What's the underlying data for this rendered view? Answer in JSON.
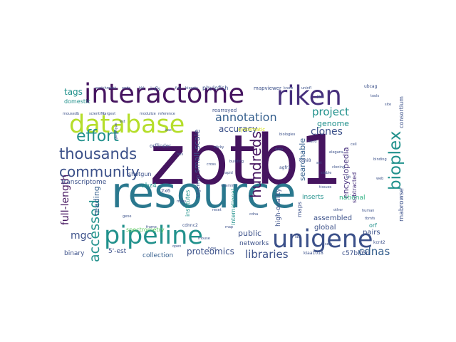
{
  "palette": {
    "dark_purple": "#45145f",
    "purple": "#462f7c",
    "indigo": "#3b5089",
    "blue": "#355f8d",
    "teal_blue": "#2a788e",
    "teal": "#21918c",
    "green": "#2ab07f",
    "light_green": "#5ec962",
    "lime": "#b5de2b",
    "yellow": "#d5e21b"
  },
  "words": [
    {
      "text": "zbtb1",
      "color": "dark_purple"
    },
    {
      "text": "resource",
      "color": "teal_blue"
    },
    {
      "text": "interactome",
      "color": "dark_purple"
    },
    {
      "text": "riken",
      "color": "purple"
    },
    {
      "text": "database",
      "color": "lime"
    },
    {
      "text": "pipeline",
      "color": "teal"
    },
    {
      "text": "unigene",
      "color": "indigo"
    },
    {
      "text": "bioplex",
      "color": "teal"
    },
    {
      "text": "thousands",
      "color": "indigo"
    },
    {
      "text": "community",
      "color": "indigo"
    },
    {
      "text": "effort",
      "color": "teal"
    },
    {
      "text": "hundreds",
      "color": "dark_purple"
    },
    {
      "text": "accessed",
      "color": "teal"
    },
    {
      "text": "annotation",
      "color": "blue"
    },
    {
      "text": "project",
      "color": "teal"
    },
    {
      "text": "libraries",
      "color": "indigo"
    },
    {
      "text": "clones",
      "color": "indigo"
    },
    {
      "text": "cdnas",
      "color": "blue"
    },
    {
      "text": "tags",
      "color": "teal"
    },
    {
      "text": "mgc",
      "color": "indigo"
    },
    {
      "text": "proteomics",
      "color": "indigo"
    },
    {
      "text": "full-length",
      "color": "dark_purple"
    },
    {
      "text": "accuracy",
      "color": "indigo"
    },
    {
      "text": "genome",
      "color": "teal"
    },
    {
      "text": "encyclopedia",
      "color": "purple"
    },
    {
      "text": "small-scale",
      "color": "indigo"
    },
    {
      "text": "searchable",
      "color": "blue"
    },
    {
      "text": "public",
      "color": "indigo"
    },
    {
      "text": "reading",
      "color": "blue"
    },
    {
      "text": "assembled",
      "color": "indigo"
    },
    {
      "text": "global",
      "color": "indigo"
    },
    {
      "text": "pairs",
      "color": "indigo"
    },
    {
      "text": "transcriptome",
      "color": "indigo"
    },
    {
      "text": "collection",
      "color": "blue"
    },
    {
      "text": "binary",
      "color": "indigo"
    },
    {
      "text": "5'-est",
      "color": "indigo"
    },
    {
      "text": "networks",
      "color": "indigo"
    },
    {
      "text": "spectrometry",
      "color": "light_green"
    },
    {
      "text": "institutes",
      "color": "teal"
    },
    {
      "text": "national",
      "color": "green"
    },
    {
      "text": "inserts",
      "color": "teal"
    },
    {
      "text": "high-quality",
      "color": "indigo"
    },
    {
      "text": "international",
      "color": "teal"
    },
    {
      "text": "maps",
      "color": "indigo"
    },
    {
      "text": "subtracted",
      "color": "purple"
    },
    {
      "text": "rnabrowse",
      "color": "indigo"
    },
    {
      "text": "consortium",
      "color": "indigo"
    },
    {
      "text": "domestic",
      "color": "teal"
    },
    {
      "text": "shotgun",
      "color": "indigo"
    },
    {
      "text": "sagemap",
      "color": "indigo"
    },
    {
      "text": "ubz4",
      "color": "teal"
    },
    {
      "text": "orf",
      "color": "teal"
    },
    {
      "text": "c57bl/6n",
      "color": "indigo"
    },
    {
      "text": "systematic",
      "color": "yellow"
    },
    {
      "text": "orffinder",
      "color": "indigo"
    },
    {
      "text": "phylofish",
      "color": "indigo"
    },
    {
      "text": "mapviewer",
      "color": "indigo"
    },
    {
      "text": "rearrayed",
      "color": "indigo"
    },
    {
      "text": "infls",
      "color": "indigo"
    },
    {
      "text": "enrichment",
      "color": "indigo"
    },
    {
      "text": "ends",
      "color": "indigo"
    },
    {
      "text": "hkl",
      "color": "indigo"
    },
    {
      "text": "full",
      "color": "indigo"
    },
    {
      "text": "biosets",
      "color": "indigo"
    },
    {
      "text": "largest",
      "color": "indigo"
    },
    {
      "text": "reference",
      "color": "indigo"
    },
    {
      "text": "modulize",
      "color": "indigo"
    },
    {
      "text": "scientific",
      "color": "indigo"
    },
    {
      "text": "mousedb",
      "color": "indigo"
    },
    {
      "text": "know",
      "color": "indigo"
    },
    {
      "text": "uninfl",
      "color": "indigo"
    },
    {
      "text": "ubcag",
      "color": "indigo"
    },
    {
      "text": "cdhi8",
      "color": "indigo"
    },
    {
      "text": "2x6",
      "color": "indigo"
    },
    {
      "text": "tbmfs",
      "color": "indigo"
    },
    {
      "text": "kcnt2",
      "color": "indigo"
    },
    {
      "text": "kiaa1018",
      "color": "indigo"
    },
    {
      "text": "cdnnc2",
      "color": "indigo"
    },
    {
      "text": "hand",
      "color": "indigo"
    },
    {
      "text": "agfr1",
      "color": "indigo"
    },
    {
      "text": "sticky",
      "color": "indigo"
    },
    {
      "text": "building",
      "color": "indigo"
    },
    {
      "text": "jira",
      "color": "indigo"
    },
    {
      "text": "rapid",
      "color": "indigo"
    },
    {
      "text": "vitamin",
      "color": "indigo"
    },
    {
      "text": "biologies",
      "color": "indigo"
    },
    {
      "text": "elegans",
      "color": "indigo"
    },
    {
      "text": "reset",
      "color": "indigo"
    },
    {
      "text": "genotype",
      "color": "indigo"
    },
    {
      "text": "cell",
      "color": "indigo"
    },
    {
      "text": "hits",
      "color": "indigo"
    },
    {
      "text": "cross",
      "color": "indigo"
    },
    {
      "text": "binding",
      "color": "indigo"
    },
    {
      "text": "stable",
      "color": "indigo"
    },
    {
      "text": "frame",
      "color": "indigo"
    },
    {
      "text": "cloning",
      "color": "indigo"
    },
    {
      "text": "tissues",
      "color": "indigo"
    },
    {
      "text": "mass",
      "color": "indigo"
    },
    {
      "text": "cdna",
      "color": "indigo"
    },
    {
      "text": "human",
      "color": "indigo"
    },
    {
      "text": "mouse",
      "color": "indigo"
    },
    {
      "text": "open",
      "color": "indigo"
    },
    {
      "text": "type",
      "color": "indigo"
    },
    {
      "text": "gene",
      "color": "indigo"
    },
    {
      "text": "data",
      "color": "indigo"
    },
    {
      "text": "other",
      "color": "indigo"
    },
    {
      "text": "sets",
      "color": "indigo"
    },
    {
      "text": "tools",
      "color": "indigo"
    },
    {
      "text": "site",
      "color": "indigo"
    },
    {
      "text": "map",
      "color": "indigo"
    },
    {
      "text": "lab",
      "color": "indigo"
    },
    {
      "text": "web",
      "color": "indigo"
    },
    {
      "text": "kit",
      "color": "indigo"
    },
    {
      "text": "est",
      "color": "indigo"
    },
    {
      "text": "bac",
      "color": "indigo"
    },
    {
      "text": "set",
      "color": "indigo"
    }
  ]
}
